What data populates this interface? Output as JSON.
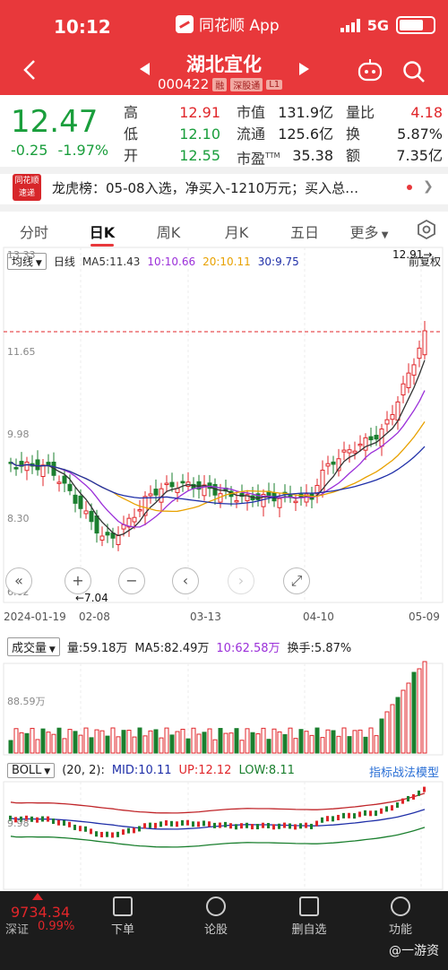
{
  "status": {
    "time": "10:12",
    "app_name": "同花顺 App",
    "network": "5G"
  },
  "header": {
    "name": "湖北宜化",
    "code": "000422",
    "tags": [
      "融",
      "深股通",
      "L1"
    ]
  },
  "quote": {
    "price": "12.47",
    "change": "-0.25",
    "change_pct": "-1.97%",
    "col1": [
      {
        "label": "高",
        "value": "12.91"
      },
      {
        "label": "低",
        "value": "12.10"
      },
      {
        "label": "开",
        "value": "12.55"
      }
    ],
    "col2": [
      {
        "label": "市值",
        "value": "131.9亿"
      },
      {
        "label": "流通",
        "value": "125.6亿"
      },
      {
        "label": "市盈",
        "sup": "TTM",
        "value": "35.38"
      }
    ],
    "col3": [
      {
        "label": "量比",
        "value": "4.18"
      },
      {
        "label": "换",
        "value": "5.87%"
      },
      {
        "label": "额",
        "value": "7.35亿"
      }
    ]
  },
  "news": {
    "logo_top": "同花顺",
    "logo_bottom": "速递",
    "text": "龙虎榜：05-08入选，净买入-1210万元；买入总…"
  },
  "tabs": [
    "分时",
    "日K",
    "周K",
    "月K",
    "五日",
    "更多"
  ],
  "kline": {
    "indicator_select": "均线",
    "period": "日线",
    "ma5": "MA5:11.43",
    "ma10": "10:10.66",
    "ma20": "20:10.11",
    "ma30": "30:9.75",
    "adjust": "前复权",
    "y_labels": [
      "13.33",
      "11.65",
      "9.98",
      "8.30",
      "6.62"
    ],
    "high_label": "12.91→",
    "low_label": "←7.04",
    "dates": [
      "2024-01-19",
      "02-08",
      "03-13",
      "04-10",
      "05-09"
    ]
  },
  "volume": {
    "select": "成交量",
    "vol": "量:59.18万",
    "ma5": "MA5:82.49万",
    "ma10": "10:62.58万",
    "turnover": "换手:5.87%",
    "y_label": "88.59万"
  },
  "boll": {
    "select": "BOLL",
    "params": "(20, 2):",
    "mid": "MID:10.11",
    "up": "UP:12.12",
    "low": "LOW:8.11",
    "link": "指标战法模型",
    "y_label": "9.98"
  },
  "bottom": {
    "index_value": "9734.34",
    "index_name": "深证",
    "index_pct": "0.99%",
    "items": [
      "下单",
      "论股",
      "删自选",
      "功能"
    ],
    "watermark": "@一游资"
  },
  "colors": {
    "up": "#e0262a",
    "down": "#1a7f2e",
    "ma5": "#333333",
    "ma10": "#9b30d9",
    "ma20": "#e8a100",
    "ma30": "#1f2fa8",
    "header": "#e8383b"
  }
}
